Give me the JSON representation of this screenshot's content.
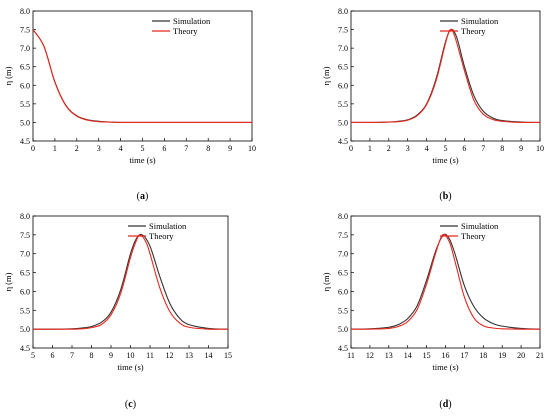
{
  "colors": {
    "simulation": "#333333",
    "theory": "#e8281e",
    "axis": "#000000"
  },
  "chart_data": [
    {
      "type": "line",
      "panel_label": "a",
      "xlabel": "time (s)",
      "ylabel": "η (m)",
      "xlim": [
        0,
        10
      ],
      "ylim": [
        4.5,
        8.0
      ],
      "xticks": [
        0,
        1,
        2,
        3,
        4,
        5,
        6,
        7,
        8,
        9,
        10
      ],
      "yticks": [
        4.5,
        5.0,
        5.5,
        6.0,
        6.5,
        7.0,
        7.5,
        8.0
      ],
      "ytick_labels": [
        "4.5",
        "5.0",
        "5.5",
        "6.0",
        "6.5",
        "7.0",
        "7.5",
        "8.0"
      ],
      "legend": {
        "position": "top-right",
        "entries": [
          "Simulation",
          "Theory"
        ]
      },
      "series": [
        {
          "name": "Simulation",
          "x": [
            0,
            0.5,
            1,
            1.5,
            2,
            2.5,
            3,
            3.5,
            4,
            5,
            6,
            7,
            8,
            9,
            10
          ],
          "y": [
            7.5,
            7.05,
            6.09,
            5.46,
            5.18,
            5.07,
            5.03,
            5.01,
            5.0,
            5.0,
            5.0,
            5.0,
            5.0,
            5.0,
            5.0
          ]
        },
        {
          "name": "Theory",
          "x": [
            0,
            0.5,
            1,
            1.5,
            2,
            2.5,
            3,
            3.5,
            4,
            5,
            6,
            7,
            8,
            9,
            10
          ],
          "y": [
            7.5,
            7.05,
            6.08,
            5.45,
            5.17,
            5.06,
            5.02,
            5.01,
            5.0,
            5.0,
            5.0,
            5.0,
            5.0,
            5.0,
            5.0
          ]
        }
      ]
    },
    {
      "type": "line",
      "panel_label": "b",
      "xlabel": "time (s)",
      "ylabel": "η (m)",
      "xlim": [
        0,
        10
      ],
      "ylim": [
        4.5,
        8.0
      ],
      "xticks": [
        0,
        1,
        2,
        3,
        4,
        5,
        6,
        7,
        8,
        9,
        10
      ],
      "yticks": [
        4.5,
        5.0,
        5.5,
        6.0,
        6.5,
        7.0,
        7.5,
        8.0
      ],
      "ytick_labels": [
        "4.5",
        "5.0",
        "5.5",
        "6.0",
        "6.5",
        "7.0",
        "7.5",
        "8.0"
      ],
      "legend": {
        "position": "top-right",
        "entries": [
          "Simulation",
          "Theory"
        ]
      },
      "series": [
        {
          "name": "Simulation",
          "x": [
            0,
            1,
            2,
            2.5,
            3,
            3.5,
            4,
            4.5,
            5,
            5.3,
            5.6,
            6,
            6.5,
            7,
            7.5,
            8,
            9,
            10
          ],
          "y": [
            5.0,
            5.0,
            5.01,
            5.03,
            5.07,
            5.2,
            5.5,
            6.17,
            7.17,
            7.5,
            7.28,
            6.51,
            5.72,
            5.3,
            5.12,
            5.05,
            5.01,
            5.0
          ]
        },
        {
          "name": "Theory",
          "x": [
            0,
            1,
            2,
            2.5,
            3,
            3.5,
            4,
            4.5,
            5,
            5.25,
            5.5,
            6,
            6.5,
            7,
            7.5,
            8,
            9,
            10
          ],
          "y": [
            5.0,
            5.0,
            5.01,
            5.02,
            5.06,
            5.18,
            5.48,
            6.12,
            7.13,
            7.5,
            7.3,
            6.4,
            5.6,
            5.22,
            5.08,
            5.03,
            5.0,
            5.0
          ]
        }
      ]
    },
    {
      "type": "line",
      "panel_label": "c",
      "xlabel": "time (s)",
      "ylabel": "η (m)",
      "xlim": [
        5,
        15
      ],
      "ylim": [
        4.5,
        8.0
      ],
      "xticks": [
        5,
        6,
        7,
        8,
        9,
        10,
        11,
        12,
        13,
        14,
        15
      ],
      "yticks": [
        4.5,
        5.0,
        5.5,
        6.0,
        6.5,
        7.0,
        7.5,
        8.0
      ],
      "ytick_labels": [
        "4.5",
        "5.0",
        "5.5",
        "6.0",
        "6.5",
        "7.0",
        "7.5",
        "8.0"
      ],
      "legend": {
        "position": "top-right",
        "entries": [
          "Simulation",
          "Theory"
        ]
      },
      "series": [
        {
          "name": "Simulation",
          "x": [
            5,
            6,
            7,
            7.5,
            8,
            8.5,
            9,
            9.5,
            10,
            10.3,
            10.6,
            11,
            11.5,
            12,
            12.5,
            13,
            14,
            15
          ],
          "y": [
            5.0,
            5.0,
            5.01,
            5.03,
            5.07,
            5.18,
            5.45,
            6.05,
            7.0,
            7.4,
            7.5,
            7.2,
            6.4,
            5.7,
            5.3,
            5.12,
            5.02,
            5.0
          ]
        },
        {
          "name": "Theory",
          "x": [
            5,
            6,
            7,
            7.5,
            8,
            8.5,
            9,
            9.5,
            10,
            10.3,
            10.5,
            10.8,
            11,
            11.5,
            12,
            12.5,
            13,
            14,
            15
          ],
          "y": [
            5.0,
            5.0,
            5.0,
            5.01,
            5.04,
            5.12,
            5.38,
            5.95,
            6.9,
            7.35,
            7.5,
            7.3,
            7.0,
            6.1,
            5.48,
            5.17,
            5.05,
            5.0,
            5.0
          ]
        }
      ]
    },
    {
      "type": "line",
      "panel_label": "d",
      "xlabel": "time (s)",
      "ylabel": "η (m)",
      "xlim": [
        11,
        21
      ],
      "ylim": [
        4.5,
        8.0
      ],
      "xticks": [
        11,
        12,
        13,
        14,
        15,
        16,
        17,
        18,
        19,
        20,
        21
      ],
      "yticks": [
        4.5,
        5.0,
        5.5,
        6.0,
        6.5,
        7.0,
        7.5,
        8.0
      ],
      "ytick_labels": [
        "4.5",
        "5.0",
        "5.5",
        "6.0",
        "6.5",
        "7.0",
        "7.5",
        "8.0"
      ],
      "legend": {
        "position": "top-right",
        "entries": [
          "Simulation",
          "Theory"
        ]
      },
      "series": [
        {
          "name": "Simulation",
          "x": [
            11,
            12,
            13,
            13.5,
            14,
            14.5,
            15,
            15.5,
            15.9,
            16.2,
            16.5,
            17,
            17.5,
            18,
            18.5,
            19,
            20,
            21
          ],
          "y": [
            5.0,
            5.01,
            5.05,
            5.12,
            5.28,
            5.62,
            6.3,
            7.1,
            7.5,
            7.4,
            7.0,
            6.15,
            5.6,
            5.3,
            5.15,
            5.08,
            5.02,
            5.0
          ]
        },
        {
          "name": "Theory",
          "x": [
            11,
            12,
            13,
            13.5,
            14,
            14.5,
            15,
            15.5,
            15.85,
            16.2,
            16.5,
            17,
            17.5,
            18,
            18.5,
            19,
            20,
            21
          ],
          "y": [
            5.0,
            5.0,
            5.02,
            5.07,
            5.2,
            5.52,
            6.2,
            7.05,
            7.5,
            7.32,
            6.8,
            5.85,
            5.3,
            5.09,
            5.03,
            5.01,
            5.0,
            5.0
          ]
        }
      ]
    }
  ]
}
